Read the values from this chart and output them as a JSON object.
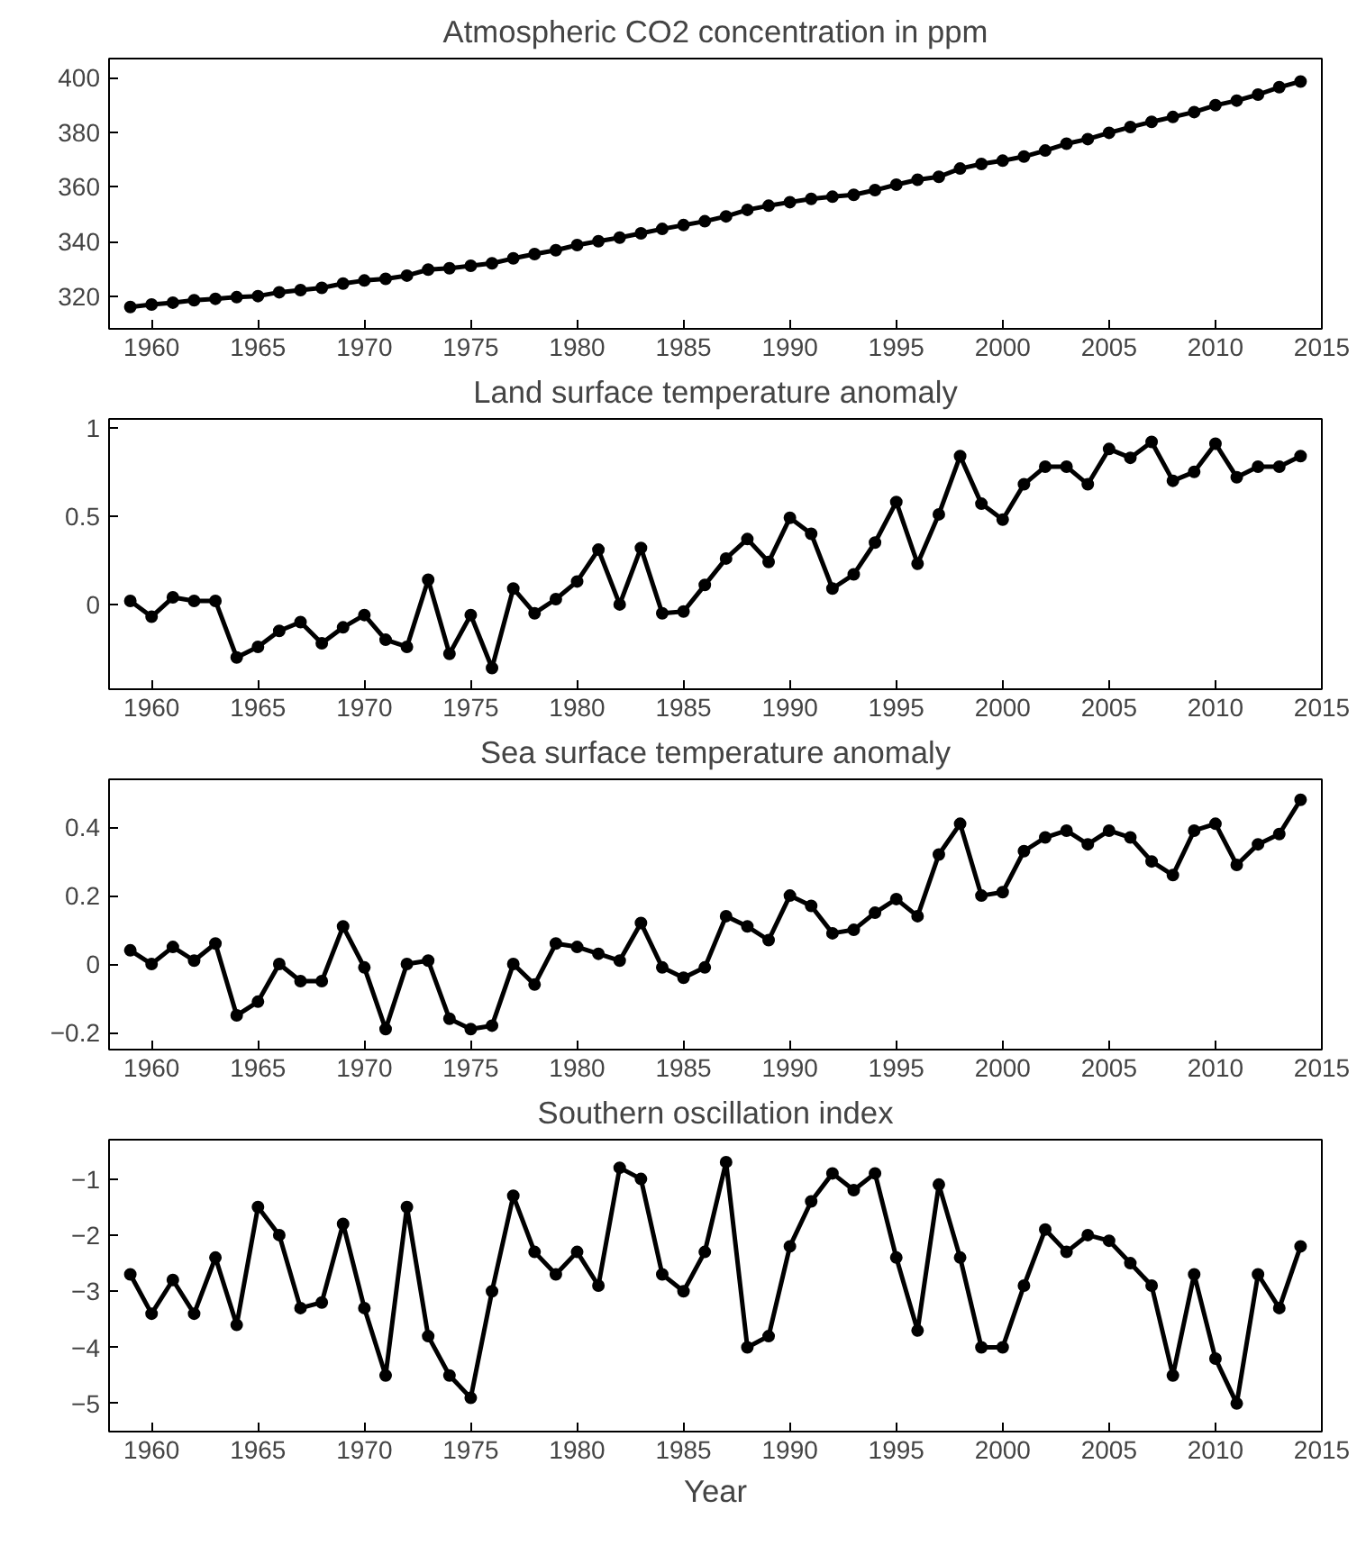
{
  "chart_data": [
    {
      "type": "line",
      "title": "Atmospheric CO2 concentration in ppm",
      "marker": "circle",
      "line_style": "solid",
      "grid": false,
      "x": [
        1959,
        1960,
        1961,
        1962,
        1963,
        1964,
        1965,
        1966,
        1967,
        1968,
        1969,
        1970,
        1971,
        1972,
        1973,
        1974,
        1975,
        1976,
        1977,
        1978,
        1979,
        1980,
        1981,
        1982,
        1983,
        1984,
        1985,
        1986,
        1987,
        1988,
        1989,
        1990,
        1991,
        1992,
        1993,
        1994,
        1995,
        1996,
        1997,
        1998,
        1999,
        2000,
        2001,
        2002,
        2003,
        2004,
        2005,
        2006,
        2007,
        2008,
        2009,
        2010,
        2011,
        2012,
        2013,
        2014
      ],
      "series": [
        {
          "color": "#000000",
          "values": [
            316.0,
            316.9,
            317.6,
            318.5,
            319.0,
            319.6,
            320.0,
            321.4,
            322.2,
            323.0,
            324.6,
            325.7,
            326.3,
            327.5,
            329.7,
            330.2,
            331.1,
            332.0,
            333.8,
            335.4,
            336.8,
            338.7,
            340.1,
            341.4,
            343.0,
            344.6,
            346.0,
            347.4,
            349.2,
            351.6,
            353.1,
            354.4,
            355.6,
            356.4,
            357.1,
            358.8,
            360.8,
            362.6,
            363.7,
            366.7,
            368.4,
            369.6,
            371.1,
            373.3,
            375.8,
            377.5,
            379.8,
            381.9,
            383.8,
            385.6,
            387.4,
            389.9,
            391.6,
            393.8,
            396.5,
            398.6
          ]
        }
      ],
      "xlim": [
        1958,
        2015
      ],
      "xticks": [
        1960,
        1965,
        1970,
        1975,
        1980,
        1985,
        1990,
        1995,
        2000,
        2005,
        2010,
        2015
      ],
      "ylim": [
        308,
        407
      ],
      "yticks": [
        320,
        340,
        360,
        380,
        400
      ]
    },
    {
      "type": "line",
      "title": "Land surface temperature anomaly",
      "marker": "circle",
      "line_style": "solid",
      "grid": false,
      "x": [
        1959,
        1960,
        1961,
        1962,
        1963,
        1964,
        1965,
        1966,
        1967,
        1968,
        1969,
        1970,
        1971,
        1972,
        1973,
        1974,
        1975,
        1976,
        1977,
        1978,
        1979,
        1980,
        1981,
        1982,
        1983,
        1984,
        1985,
        1986,
        1987,
        1988,
        1989,
        1990,
        1991,
        1992,
        1993,
        1994,
        1995,
        1996,
        1997,
        1998,
        1999,
        2000,
        2001,
        2002,
        2003,
        2004,
        2005,
        2006,
        2007,
        2008,
        2009,
        2010,
        2011,
        2012,
        2013,
        2014
      ],
      "series": [
        {
          "color": "#000000",
          "values": [
            0.02,
            -0.07,
            0.04,
            0.02,
            0.02,
            -0.3,
            -0.24,
            -0.15,
            -0.1,
            -0.22,
            -0.13,
            -0.06,
            -0.2,
            -0.24,
            0.14,
            -0.28,
            -0.06,
            -0.36,
            0.09,
            -0.05,
            0.03,
            0.13,
            0.31,
            0.0,
            0.32,
            -0.05,
            -0.04,
            0.11,
            0.26,
            0.37,
            0.24,
            0.49,
            0.4,
            0.09,
            0.17,
            0.35,
            0.58,
            0.23,
            0.51,
            0.84,
            0.57,
            0.48,
            0.68,
            0.78,
            0.78,
            0.68,
            0.88,
            0.83,
            0.92,
            0.7,
            0.75,
            0.91,
            0.72,
            0.78,
            0.78,
            0.84
          ]
        }
      ],
      "xlim": [
        1958,
        2015
      ],
      "xticks": [
        1960,
        1965,
        1970,
        1975,
        1980,
        1985,
        1990,
        1995,
        2000,
        2005,
        2010,
        2015
      ],
      "ylim": [
        -0.48,
        1.05
      ],
      "yticks": [
        0,
        0.5,
        1
      ]
    },
    {
      "type": "line",
      "title": "Sea surface temperature anomaly",
      "marker": "circle",
      "line_style": "solid",
      "grid": false,
      "x": [
        1959,
        1960,
        1961,
        1962,
        1963,
        1964,
        1965,
        1966,
        1967,
        1968,
        1969,
        1970,
        1971,
        1972,
        1973,
        1974,
        1975,
        1976,
        1977,
        1978,
        1979,
        1980,
        1981,
        1982,
        1983,
        1984,
        1985,
        1986,
        1987,
        1988,
        1989,
        1990,
        1991,
        1992,
        1993,
        1994,
        1995,
        1996,
        1997,
        1998,
        1999,
        2000,
        2001,
        2002,
        2003,
        2004,
        2005,
        2006,
        2007,
        2008,
        2009,
        2010,
        2011,
        2012,
        2013,
        2014
      ],
      "series": [
        {
          "color": "#000000",
          "values": [
            0.04,
            0.0,
            0.05,
            0.01,
            0.06,
            -0.15,
            -0.11,
            0.0,
            -0.05,
            -0.05,
            0.11,
            -0.01,
            -0.19,
            0.0,
            0.01,
            -0.16,
            -0.19,
            -0.18,
            0.0,
            -0.06,
            0.06,
            0.05,
            0.03,
            0.01,
            0.12,
            -0.01,
            -0.04,
            -0.01,
            0.14,
            0.11,
            0.07,
            0.2,
            0.17,
            0.09,
            0.1,
            0.15,
            0.19,
            0.14,
            0.32,
            0.41,
            0.2,
            0.21,
            0.33,
            0.37,
            0.39,
            0.35,
            0.39,
            0.37,
            0.3,
            0.26,
            0.39,
            0.41,
            0.29,
            0.35,
            0.38,
            0.48
          ]
        }
      ],
      "xlim": [
        1958,
        2015
      ],
      "xticks": [
        1960,
        1965,
        1970,
        1975,
        1980,
        1985,
        1990,
        1995,
        2000,
        2005,
        2010,
        2015
      ],
      "ylim": [
        -0.25,
        0.54
      ],
      "yticks": [
        -0.2,
        0,
        0.2,
        0.4
      ]
    },
    {
      "type": "line",
      "title": "Southern oscillation index",
      "xlabel": "Year",
      "marker": "circle",
      "line_style": "solid",
      "grid": false,
      "x": [
        1959,
        1960,
        1961,
        1962,
        1963,
        1964,
        1965,
        1966,
        1967,
        1968,
        1969,
        1970,
        1971,
        1972,
        1973,
        1974,
        1975,
        1976,
        1977,
        1978,
        1979,
        1980,
        1981,
        1982,
        1983,
        1984,
        1985,
        1986,
        1987,
        1988,
        1989,
        1990,
        1991,
        1992,
        1993,
        1994,
        1995,
        1996,
        1997,
        1998,
        1999,
        2000,
        2001,
        2002,
        2003,
        2004,
        2005,
        2006,
        2007,
        2008,
        2009,
        2010,
        2011,
        2012,
        2013,
        2014
      ],
      "series": [
        {
          "color": "#000000",
          "values": [
            -2.7,
            -3.4,
            -2.8,
            -3.4,
            -2.4,
            -3.6,
            -1.5,
            -2.0,
            -3.3,
            -3.2,
            -1.8,
            -3.3,
            -4.5,
            -1.5,
            -3.8,
            -4.5,
            -4.9,
            -3.0,
            -1.3,
            -2.3,
            -2.7,
            -2.3,
            -2.9,
            -0.8,
            -1.0,
            -2.7,
            -3.0,
            -2.3,
            -0.7,
            -4.0,
            -3.8,
            -2.2,
            -1.4,
            -0.9,
            -1.2,
            -0.9,
            -2.4,
            -3.7,
            -1.1,
            -2.4,
            -4.0,
            -4.0,
            -2.9,
            -1.9,
            -2.3,
            -2.0,
            -2.1,
            -2.5,
            -2.9,
            -4.5,
            -2.7,
            -4.2,
            -5.0,
            -2.7,
            -3.3,
            -2.2
          ]
        }
      ],
      "xlim": [
        1958,
        2015
      ],
      "xticks": [
        1960,
        1965,
        1970,
        1975,
        1980,
        1985,
        1990,
        1995,
        2000,
        2005,
        2010,
        2015
      ],
      "ylim": [
        -5.5,
        -0.3
      ],
      "yticks": [
        -5,
        -4,
        -3,
        -2,
        -1
      ]
    }
  ]
}
